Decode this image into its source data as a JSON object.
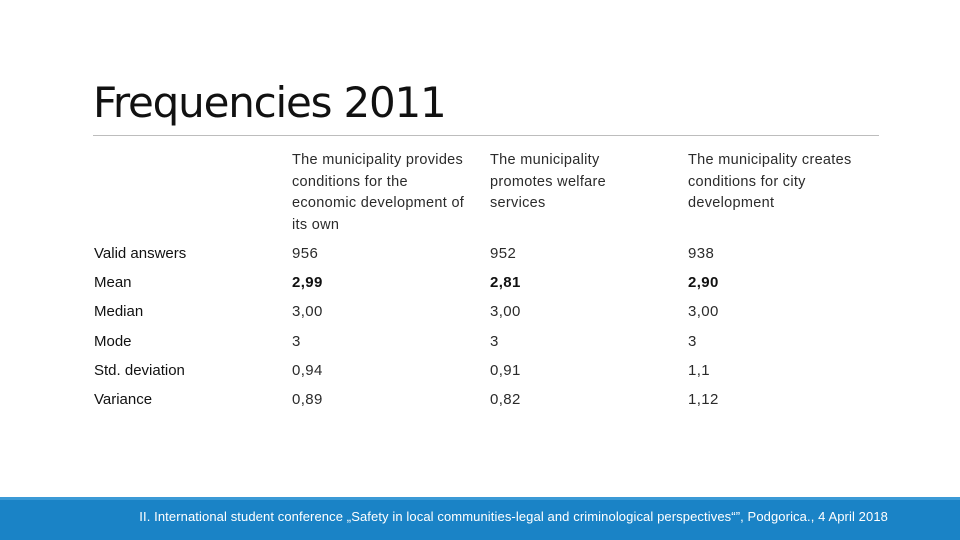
{
  "slide": {
    "title": "Frequencies 2011",
    "columns": [
      "The municipality provides conditions for the economic development of its own",
      "The municipality promotes welfare services",
      "The municipality creates conditions for city development"
    ],
    "rows": [
      {
        "label": "Valid answers",
        "values": [
          "956",
          "952",
          "938"
        ]
      },
      {
        "label": "Mean",
        "values": [
          "2,99",
          "2,81",
          "2,90"
        ]
      },
      {
        "label": "Median",
        "values": [
          "3,00",
          "3,00",
          "3,00"
        ]
      },
      {
        "label": "Mode",
        "values": [
          "3",
          "3",
          "3"
        ]
      },
      {
        "label": "Std. deviation",
        "values": [
          "0,94",
          "0,91",
          "1,1"
        ]
      },
      {
        "label": "Variance",
        "values": [
          "0,89",
          "0,82",
          "1,12"
        ]
      }
    ]
  },
  "footer": {
    "text": "II. International student conference „Safety in local communities-legal and criminological perspectives“”, Podgorica., 4 April 2018"
  },
  "colors": {
    "footer_bg": "#1a83c6",
    "rule": "#bdbdbd"
  }
}
